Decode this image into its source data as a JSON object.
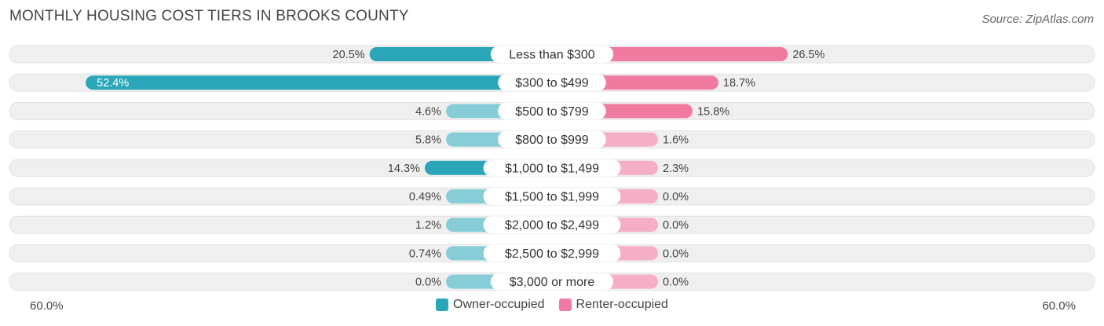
{
  "title": "MONTHLY HOUSING COST TIERS IN BROOKS COUNTY",
  "source": "Source: ZipAtlas.com",
  "colors": {
    "owner": "#2aa6b8",
    "owner_light": "#86cdd8",
    "renter": "#f07aa0",
    "renter_light": "#f5aec6",
    "row_bg": "#efefef"
  },
  "axis": {
    "left_label": "60.0%",
    "right_label": "60.0%"
  },
  "legend": {
    "owner": "Owner-occupied",
    "renter": "Renter-occupied"
  },
  "chart_data": {
    "type": "bar",
    "orientation": "horizontal-diverging",
    "title": "MONTHLY HOUSING COST TIERS IN BROOKS COUNTY",
    "categories": [
      "Less than $300",
      "$300 to $499",
      "$500 to $799",
      "$800 to $999",
      "$1,000 to $1,499",
      "$1,500 to $1,999",
      "$2,000 to $2,499",
      "$2,500 to $2,999",
      "$3,000 or more"
    ],
    "series": [
      {
        "name": "Owner-occupied",
        "values": [
          20.5,
          52.4,
          4.6,
          5.8,
          14.3,
          0.49,
          1.2,
          0.74,
          0.0
        ],
        "labels": [
          "20.5%",
          "52.4%",
          "4.6%",
          "5.8%",
          "14.3%",
          "0.49%",
          "1.2%",
          "0.74%",
          "0.0%"
        ]
      },
      {
        "name": "Renter-occupied",
        "values": [
          26.5,
          18.7,
          15.8,
          1.6,
          2.3,
          0.0,
          0.0,
          0.0,
          0.0
        ],
        "labels": [
          "26.5%",
          "18.7%",
          "15.8%",
          "1.6%",
          "2.3%",
          "0.0%",
          "0.0%",
          "0.0%",
          "0.0%"
        ]
      }
    ],
    "xlim": [
      -60,
      60
    ],
    "legend_position": "bottom-center"
  }
}
